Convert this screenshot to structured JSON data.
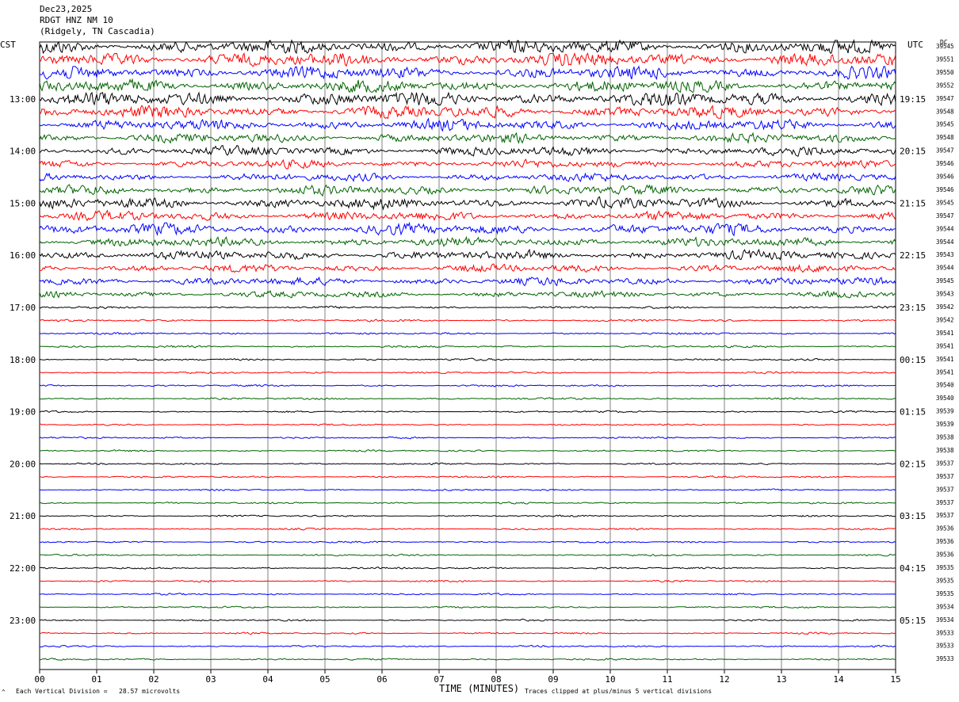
{
  "header": {
    "date": "Dec23,2025",
    "station": "RDGT HNZ NM 10",
    "location": "(Ridgely, TN Cascadia)"
  },
  "axis": {
    "left_tz": "CST",
    "right_tz": "UTC",
    "right_col_header": "DC",
    "xlabel": "TIME (MINUTES)",
    "x_ticks": [
      "00",
      "01",
      "02",
      "03",
      "04",
      "05",
      "06",
      "07",
      "08",
      "09",
      "10",
      "11",
      "12",
      "13",
      "14",
      "15"
    ]
  },
  "footer": {
    "scale_note": "Each Vertical Division =   28.57 microvolts",
    "clip_note": "Traces clipped at plus/minus 5 vertical divisions"
  },
  "chart_data": {
    "type": "line",
    "title": "RDGT HNZ NM 10",
    "xlim": [
      0,
      15
    ],
    "trace_colors": [
      "#000000",
      "#ff0000",
      "#0000ff",
      "#006400"
    ],
    "left_hour_labels": [
      "13:00",
      "14:00",
      "15:00",
      "16:00",
      "17:00",
      "18:00",
      "19:00",
      "20:00",
      "21:00",
      "22:00",
      "23:00"
    ],
    "right_hour_labels": [
      "19:15",
      "20:15",
      "21:15",
      "22:15",
      "23:15",
      "00:15",
      "01:15",
      "02:15",
      "03:15",
      "04:15",
      "05:15"
    ],
    "dc_offsets": [
      "39545",
      "39551",
      "39550",
      "39552",
      "39547",
      "39548",
      "39545",
      "39548",
      "39547",
      "39546",
      "39546",
      "39546",
      "39545",
      "39547",
      "39544",
      "39544",
      "39543",
      "39544",
      "39545",
      "39543",
      "39542",
      "39542",
      "39541",
      "39541",
      "39541",
      "39541",
      "39540",
      "39540",
      "39539",
      "39539",
      "39538",
      "39538",
      "39537",
      "39537",
      "39537",
      "39537",
      "39537",
      "39536",
      "39536",
      "39536",
      "39535",
      "39535",
      "39535",
      "39534",
      "39534",
      "39533",
      "39533",
      "39533"
    ],
    "activity": [
      9,
      9,
      8,
      8,
      9,
      8,
      7,
      6,
      6,
      5,
      5,
      6,
      7,
      6,
      7,
      6,
      6,
      5,
      5,
      4,
      1.5,
      1.4,
      1.3,
      1.3,
      1.3,
      1.2,
      1.2,
      1.2,
      1.1,
      1.1,
      1.1,
      1.1,
      1.1,
      1.1,
      1.1,
      1.1,
      1.1,
      1.1,
      1.1,
      1.1,
      1.1,
      1.1,
      1.1,
      1.1,
      1.1,
      1.1,
      1.1,
      1.1
    ]
  }
}
